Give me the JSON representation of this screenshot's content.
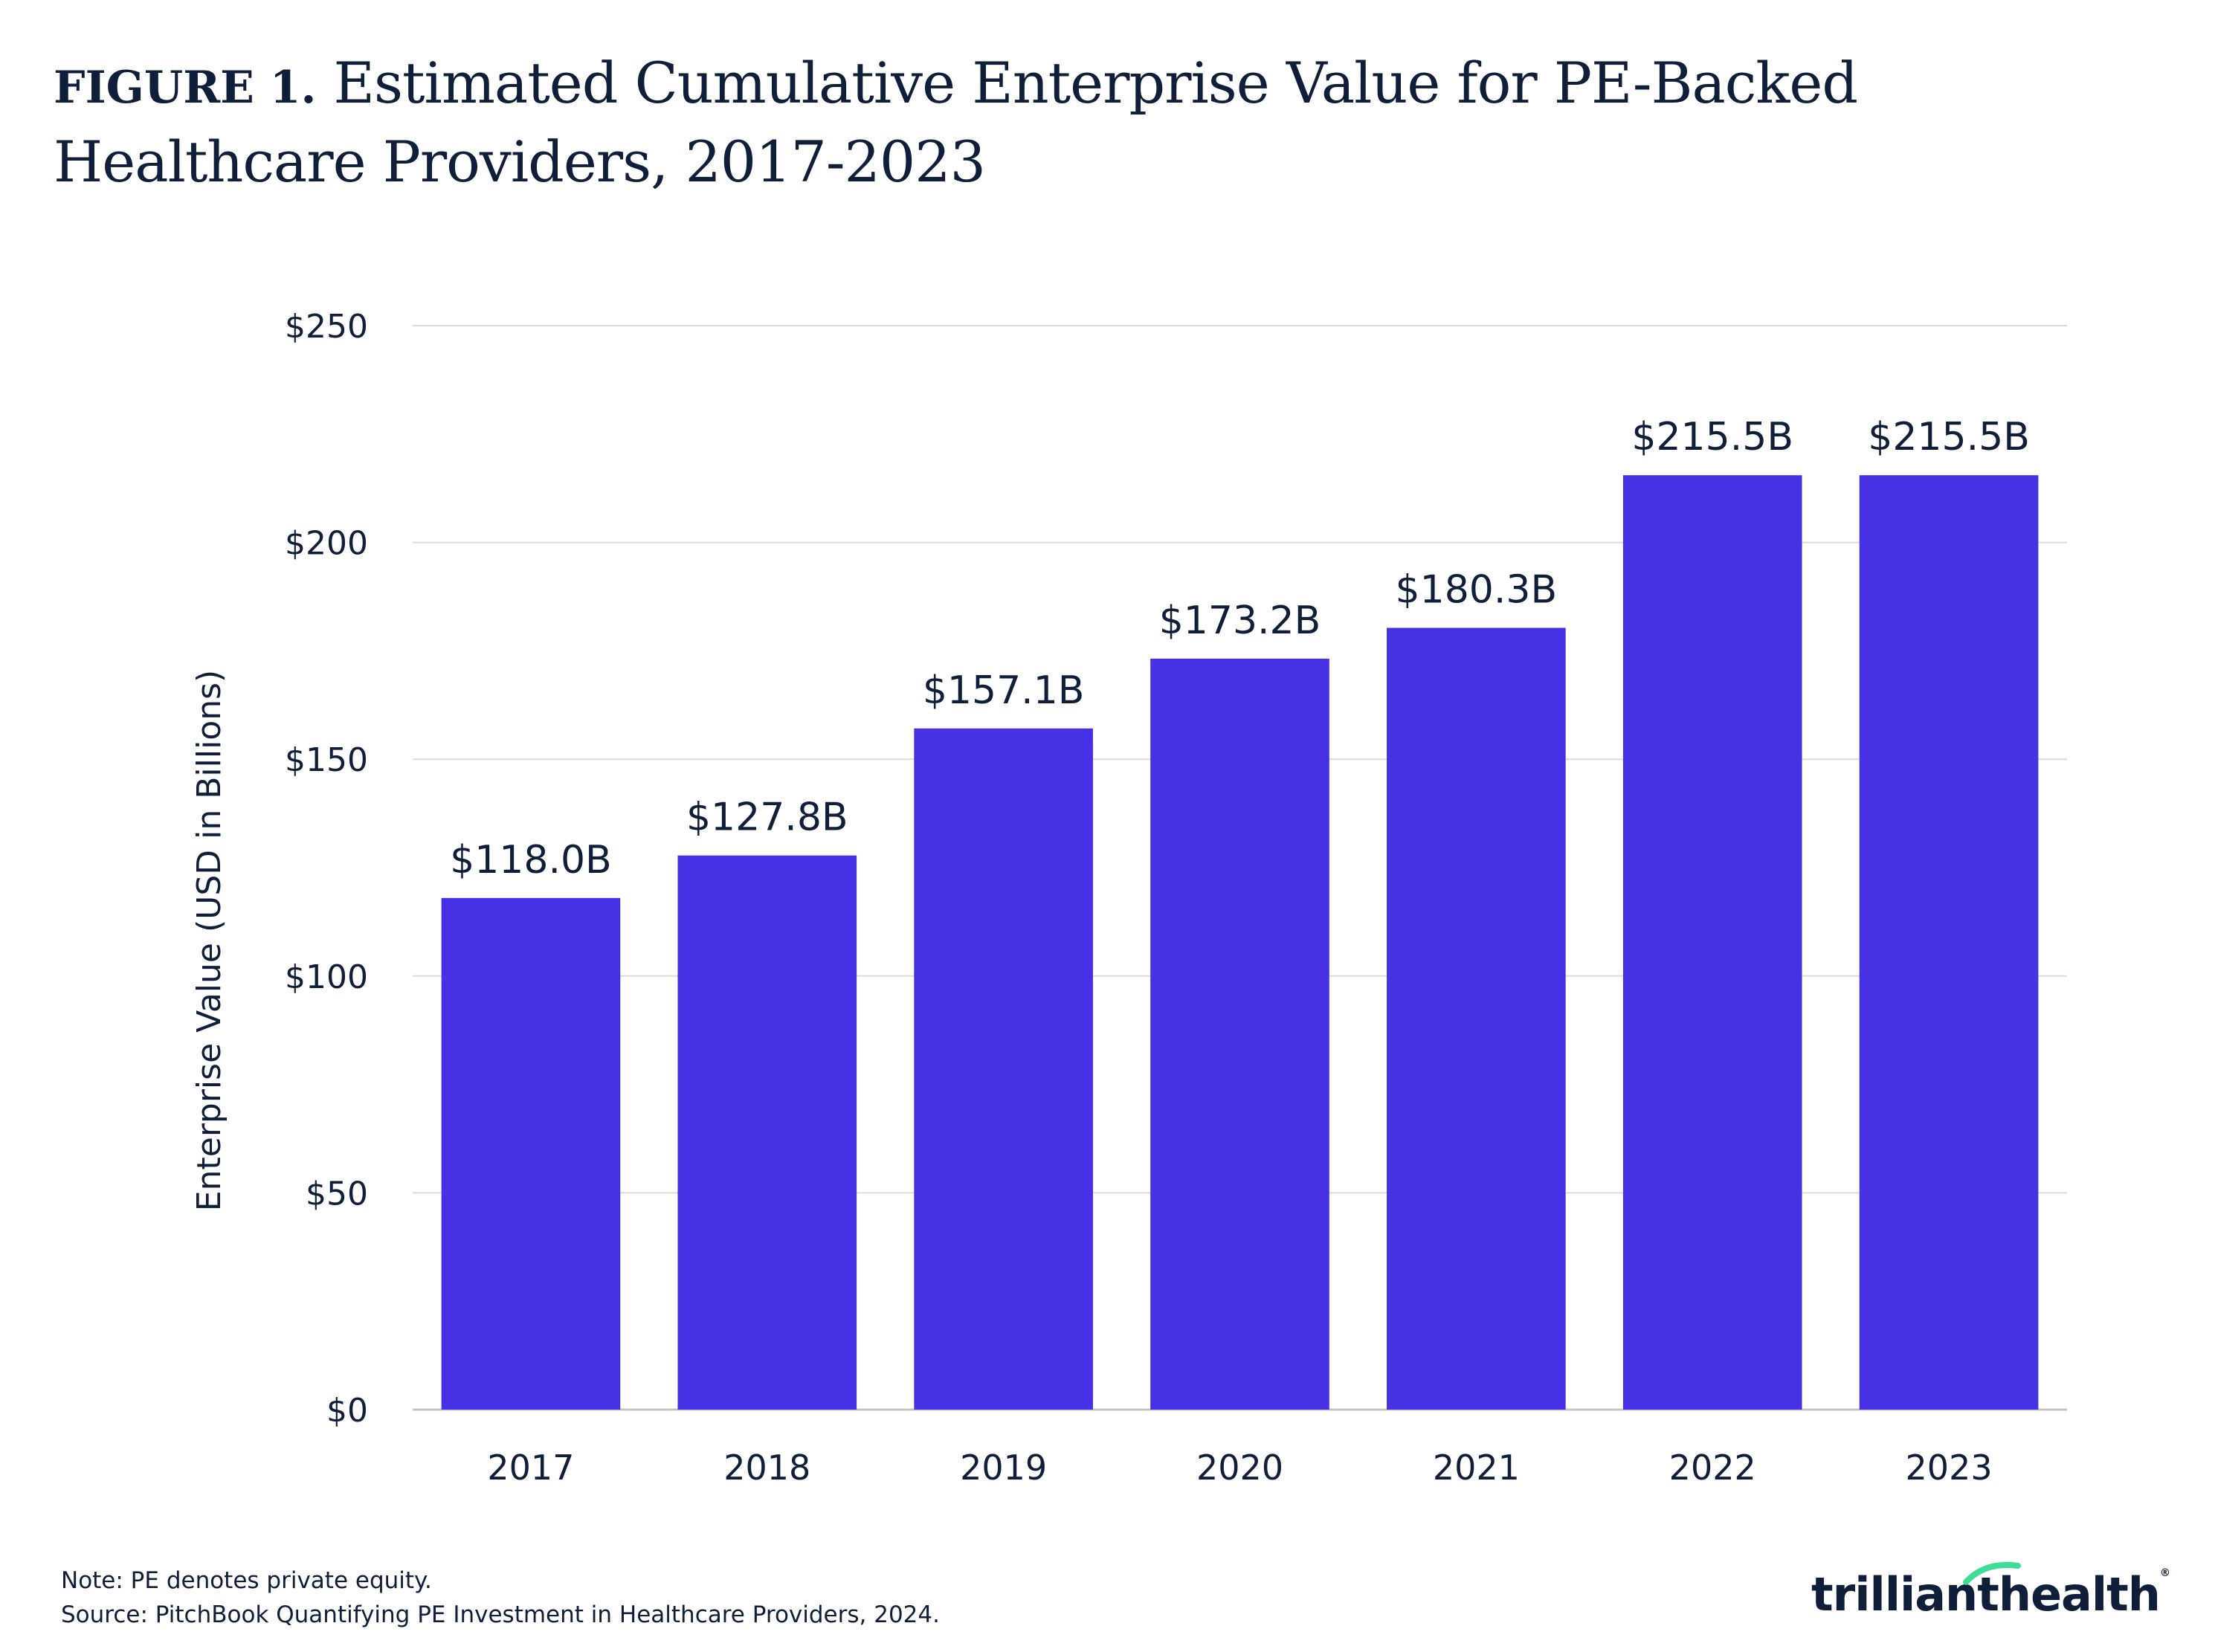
{
  "title": {
    "figure_label": "FIGURE 1.",
    "text": "Estimated Cumulative Enterprise Value for PE-Backed Healthcare Providers, 2017-2023"
  },
  "chart_data": {
    "type": "bar",
    "categories": [
      "2017",
      "2018",
      "2019",
      "2020",
      "2021",
      "2022",
      "2023"
    ],
    "values": [
      118.0,
      127.8,
      157.1,
      173.2,
      180.3,
      215.5,
      215.5
    ],
    "data_labels": [
      "$118.0B",
      "$127.8B",
      "$157.1B",
      "$173.2B",
      "$180.3B",
      "$215.5B",
      "$215.5B"
    ],
    "ylabel": "Enterprise Value (USD in Billions)",
    "xlabel": "",
    "ylim": [
      0,
      250
    ],
    "yticks": [
      0,
      50,
      100,
      150,
      200,
      250
    ],
    "ytick_labels": [
      "$0",
      "$50",
      "$100",
      "$150",
      "$200",
      "$250"
    ],
    "grid": true,
    "bar_color": "#4631e4"
  },
  "footer": {
    "note": "Note: PE denotes private equity.",
    "source": "Source: PitchBook Quantifying PE Investment in Healthcare Providers, 2024."
  },
  "logo": {
    "text_before": "trilliant",
    "text_after": "health",
    "registered": "®",
    "accent_color": "#3ddc97"
  }
}
